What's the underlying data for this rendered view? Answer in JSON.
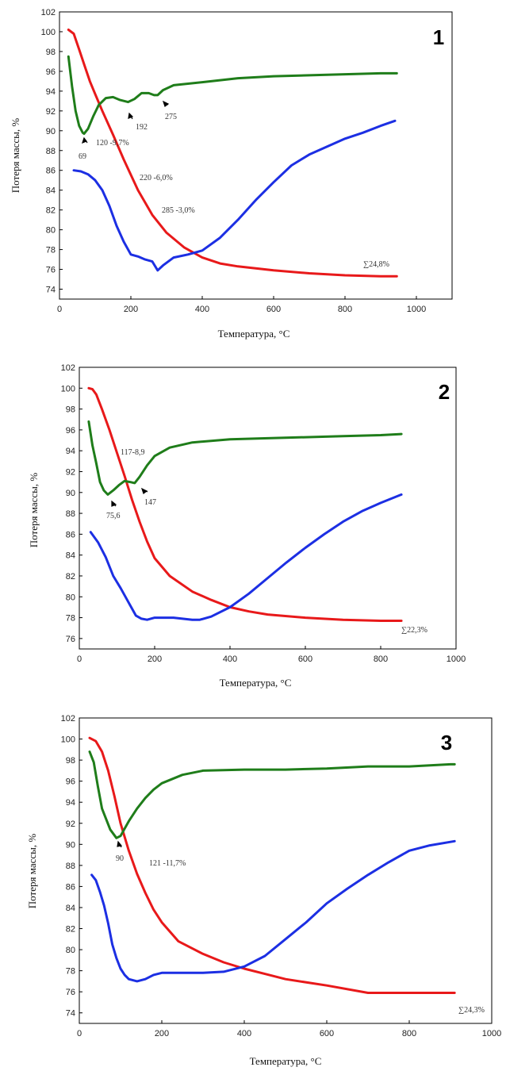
{
  "chart_data": [
    {
      "type": "line",
      "panel_label": "1",
      "xlabel": "Температура, °С",
      "ylabel": "Потеря массы, %",
      "xlim": [
        0,
        1100
      ],
      "ylim": [
        73,
        102
      ],
      "xticks": [
        0,
        200,
        400,
        600,
        800,
        1000
      ],
      "yticks": [
        74,
        76,
        78,
        80,
        82,
        84,
        86,
        88,
        90,
        92,
        94,
        96,
        98,
        100,
        102
      ],
      "series": [
        {
          "color": "#e8191a",
          "x": [
            25,
            40,
            55,
            70,
            85,
            100,
            120,
            150,
            180,
            220,
            260,
            300,
            350,
            400,
            450,
            500,
            600,
            700,
            800,
            900,
            945
          ],
          "y": [
            100.2,
            99.8,
            98.2,
            96.6,
            95.0,
            93.7,
            92.0,
            89.6,
            87.1,
            84.0,
            81.5,
            79.7,
            78.2,
            77.2,
            76.6,
            76.3,
            75.9,
            75.6,
            75.4,
            75.3,
            75.3
          ]
        },
        {
          "color": "#1f7d1a",
          "x": [
            25,
            35,
            45,
            55,
            65,
            69,
            80,
            95,
            110,
            130,
            150,
            170,
            192,
            210,
            230,
            250,
            265,
            275,
            290,
            320,
            400,
            500,
            600,
            700,
            800,
            900,
            945
          ],
          "y": [
            97.5,
            94.5,
            92.0,
            90.5,
            89.8,
            89.7,
            90.2,
            91.5,
            92.6,
            93.3,
            93.4,
            93.1,
            92.9,
            93.2,
            93.8,
            93.8,
            93.6,
            93.6,
            94.1,
            94.6,
            94.9,
            95.3,
            95.5,
            95.6,
            95.7,
            95.8,
            95.8
          ]
        },
        {
          "color": "#1c2fe3",
          "x": [
            40,
            60,
            80,
            100,
            120,
            140,
            160,
            180,
            200,
            220,
            240,
            260,
            275,
            290,
            320,
            360,
            400,
            450,
            500,
            550,
            600,
            650,
            700,
            750,
            800,
            850,
            900,
            940
          ],
          "y": [
            86.0,
            85.9,
            85.6,
            85.0,
            84.0,
            82.4,
            80.4,
            78.8,
            77.5,
            77.3,
            77.0,
            76.8,
            75.9,
            76.4,
            77.2,
            77.5,
            77.9,
            79.2,
            81.0,
            83.0,
            84.8,
            86.5,
            87.6,
            88.4,
            89.2,
            89.8,
            90.5,
            91.0
          ]
        }
      ],
      "annotations": [
        "69",
        "192",
        "275",
        "120 -9,7%",
        "220 -6,0%",
        "285 -3,0%",
        "∑24,8%"
      ]
    },
    {
      "type": "line",
      "panel_label": "2",
      "xlabel": "Температура, °С",
      "ylabel": "Потеря массы, %",
      "xlim": [
        0,
        1000
      ],
      "ylim": [
        75,
        102
      ],
      "xticks": [
        0,
        200,
        400,
        600,
        800,
        1000
      ],
      "yticks": [
        76,
        78,
        80,
        82,
        84,
        86,
        88,
        90,
        92,
        94,
        96,
        98,
        100,
        102
      ],
      "series": [
        {
          "color": "#e8191a",
          "x": [
            25,
            35,
            45,
            60,
            80,
            100,
            120,
            140,
            160,
            180,
            200,
            240,
            300,
            350,
            400,
            450,
            500,
            600,
            700,
            800,
            855
          ],
          "y": [
            100.0,
            99.9,
            99.4,
            98.0,
            96.0,
            93.8,
            91.6,
            89.3,
            87.2,
            85.3,
            83.7,
            82.0,
            80.5,
            79.7,
            79.0,
            78.6,
            78.3,
            78.0,
            77.8,
            77.7,
            77.7
          ]
        },
        {
          "color": "#1f7d1a",
          "x": [
            25,
            35,
            45,
            55,
            65,
            75.6,
            90,
            105,
            120,
            135,
            147,
            160,
            180,
            200,
            240,
            300,
            400,
            500,
            600,
            700,
            800,
            855
          ],
          "y": [
            96.8,
            94.5,
            92.8,
            91.0,
            90.2,
            89.8,
            90.2,
            90.7,
            91.1,
            91.0,
            90.9,
            91.5,
            92.6,
            93.5,
            94.3,
            94.8,
            95.1,
            95.2,
            95.3,
            95.4,
            95.5,
            95.6
          ]
        },
        {
          "color": "#1c2fe3",
          "x": [
            30,
            50,
            70,
            90,
            110,
            130,
            150,
            165,
            180,
            200,
            250,
            300,
            320,
            350,
            400,
            450,
            500,
            550,
            600,
            650,
            700,
            750,
            800,
            855
          ],
          "y": [
            86.2,
            85.2,
            83.8,
            82.0,
            80.8,
            79.5,
            78.2,
            77.9,
            77.8,
            78.0,
            78.0,
            77.8,
            77.8,
            78.1,
            79.0,
            80.3,
            81.8,
            83.3,
            84.7,
            86.0,
            87.2,
            88.2,
            89.0,
            89.8
          ]
        }
      ],
      "annotations": [
        "117-8,9",
        "75,6",
        "147",
        "∑22,3%"
      ]
    },
    {
      "type": "line",
      "panel_label": "3",
      "xlabel": "Температура, °С",
      "ylabel": "Потеря массы, %",
      "xlim": [
        0,
        1000
      ],
      "ylim": [
        73,
        102
      ],
      "xticks": [
        0,
        200,
        400,
        600,
        800,
        1000
      ],
      "yticks": [
        74,
        76,
        78,
        80,
        82,
        84,
        86,
        88,
        90,
        92,
        94,
        96,
        98,
        100,
        102
      ],
      "series": [
        {
          "color": "#e8191a",
          "x": [
            25,
            40,
            55,
            70,
            85,
            100,
            120,
            140,
            160,
            180,
            200,
            240,
            300,
            350,
            400,
            450,
            500,
            600,
            700,
            800,
            900,
            910
          ],
          "y": [
            100.1,
            99.8,
            98.8,
            97.0,
            94.6,
            92.0,
            89.4,
            87.2,
            85.4,
            83.8,
            82.6,
            80.8,
            79.6,
            78.8,
            78.2,
            77.7,
            77.2,
            76.6,
            75.9,
            75.9,
            75.9,
            75.9
          ]
        },
        {
          "color": "#1f7d1a",
          "x": [
            25,
            35,
            45,
            55,
            65,
            75,
            90,
            100,
            120,
            140,
            160,
            180,
            200,
            250,
            300,
            400,
            500,
            600,
            700,
            800,
            900,
            910
          ],
          "y": [
            98.8,
            97.8,
            95.5,
            93.4,
            92.4,
            91.4,
            90.6,
            90.8,
            92.2,
            93.4,
            94.4,
            95.2,
            95.8,
            96.6,
            97.0,
            97.1,
            97.1,
            97.2,
            97.4,
            97.4,
            97.6,
            97.6
          ]
        },
        {
          "color": "#1c2fe3",
          "x": [
            30,
            40,
            50,
            60,
            70,
            80,
            90,
            100,
            110,
            120,
            140,
            160,
            180,
            200,
            250,
            300,
            350,
            400,
            450,
            500,
            550,
            600,
            650,
            700,
            750,
            800,
            850,
            910
          ],
          "y": [
            87.1,
            86.6,
            85.5,
            84.2,
            82.5,
            80.5,
            79.2,
            78.2,
            77.6,
            77.2,
            77.0,
            77.2,
            77.6,
            77.8,
            77.8,
            77.8,
            77.9,
            78.4,
            79.4,
            81.0,
            82.6,
            84.4,
            85.8,
            87.1,
            88.3,
            89.4,
            89.9,
            90.3
          ]
        }
      ],
      "annotations": [
        "90",
        "121 -11,7%",
        "∑24,3%"
      ]
    }
  ]
}
